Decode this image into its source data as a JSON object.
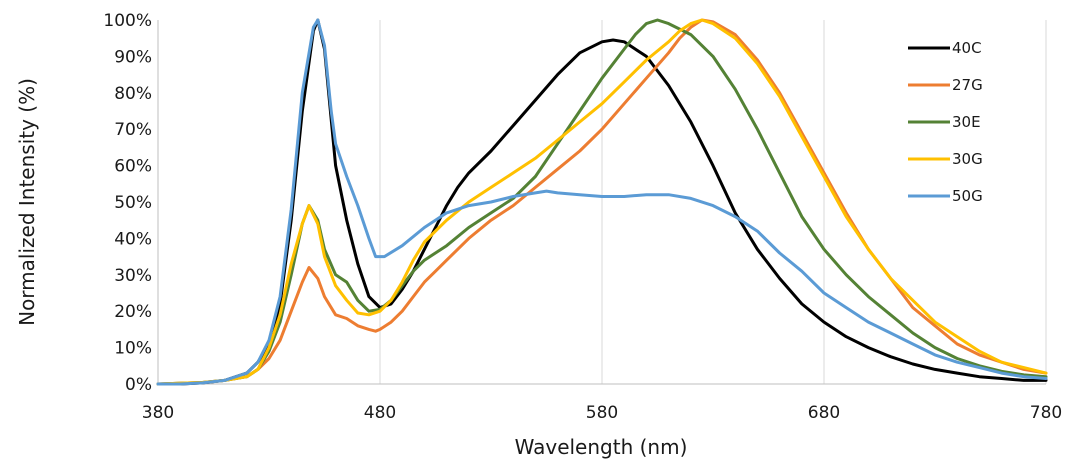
{
  "chart_data": {
    "type": "line",
    "title": "",
    "xlabel": "Wavelength (nm)",
    "ylabel": "Normalized Intensity (%)",
    "xlim": [
      380,
      780
    ],
    "ylim": [
      0,
      100
    ],
    "x_ticks": [
      380,
      480,
      580,
      680,
      780
    ],
    "x_tick_labels": [
      "380",
      "480",
      "580",
      "680",
      "780"
    ],
    "y_ticks": [
      0,
      10,
      20,
      30,
      40,
      50,
      60,
      70,
      80,
      90,
      100
    ],
    "y_tick_labels": [
      "0%",
      "10%",
      "20%",
      "30%",
      "40%",
      "50%",
      "60%",
      "70%",
      "80%",
      "90%",
      "100%"
    ],
    "grid": "vertical",
    "legend_position": "right",
    "series": [
      {
        "name": "40C",
        "color": "#000000",
        "points": [
          [
            380,
            0
          ],
          [
            390,
            0
          ],
          [
            400,
            0.3
          ],
          [
            410,
            1
          ],
          [
            420,
            3
          ],
          [
            425,
            6
          ],
          [
            430,
            11
          ],
          [
            435,
            22
          ],
          [
            440,
            45
          ],
          [
            445,
            75
          ],
          [
            450,
            97
          ],
          [
            452,
            100
          ],
          [
            455,
            92
          ],
          [
            460,
            60
          ],
          [
            465,
            45
          ],
          [
            470,
            33
          ],
          [
            475,
            24
          ],
          [
            480,
            21
          ],
          [
            485,
            22
          ],
          [
            490,
            26
          ],
          [
            495,
            31
          ],
          [
            500,
            37
          ],
          [
            505,
            43
          ],
          [
            510,
            49
          ],
          [
            515,
            54
          ],
          [
            520,
            58
          ],
          [
            530,
            64
          ],
          [
            540,
            71
          ],
          [
            550,
            78
          ],
          [
            560,
            85
          ],
          [
            570,
            91
          ],
          [
            580,
            94
          ],
          [
            585,
            94.5
          ],
          [
            590,
            94
          ],
          [
            600,
            90
          ],
          [
            610,
            82
          ],
          [
            620,
            72
          ],
          [
            630,
            60
          ],
          [
            640,
            47
          ],
          [
            650,
            37
          ],
          [
            660,
            29
          ],
          [
            670,
            22
          ],
          [
            680,
            17
          ],
          [
            690,
            13
          ],
          [
            700,
            10
          ],
          [
            710,
            7.5
          ],
          [
            720,
            5.5
          ],
          [
            730,
            4
          ],
          [
            740,
            3
          ],
          [
            750,
            2
          ],
          [
            760,
            1.5
          ],
          [
            770,
            1
          ],
          [
            780,
            1
          ]
        ]
      },
      {
        "name": "27G",
        "color": "#ED7D31",
        "points": [
          [
            380,
            0
          ],
          [
            390,
            0.2
          ],
          [
            400,
            0.4
          ],
          [
            410,
            1
          ],
          [
            420,
            2
          ],
          [
            425,
            4
          ],
          [
            430,
            7
          ],
          [
            435,
            12
          ],
          [
            440,
            20
          ],
          [
            445,
            28
          ],
          [
            448,
            32
          ],
          [
            452,
            29
          ],
          [
            455,
            24
          ],
          [
            460,
            19
          ],
          [
            465,
            18
          ],
          [
            470,
            16
          ],
          [
            475,
            15
          ],
          [
            478,
            14.5
          ],
          [
            480,
            15
          ],
          [
            485,
            17
          ],
          [
            490,
            20
          ],
          [
            495,
            24
          ],
          [
            500,
            28
          ],
          [
            505,
            31
          ],
          [
            510,
            34
          ],
          [
            520,
            40
          ],
          [
            530,
            45
          ],
          [
            540,
            49
          ],
          [
            550,
            54
          ],
          [
            560,
            59
          ],
          [
            570,
            64
          ],
          [
            580,
            70
          ],
          [
            590,
            77
          ],
          [
            600,
            84
          ],
          [
            610,
            91
          ],
          [
            615,
            95
          ],
          [
            620,
            98
          ],
          [
            625,
            100
          ],
          [
            630,
            99.5
          ],
          [
            640,
            96
          ],
          [
            650,
            89
          ],
          [
            660,
            80
          ],
          [
            670,
            69
          ],
          [
            680,
            58
          ],
          [
            690,
            47
          ],
          [
            700,
            37
          ],
          [
            710,
            29
          ],
          [
            720,
            21
          ],
          [
            730,
            16
          ],
          [
            740,
            11
          ],
          [
            750,
            8
          ],
          [
            760,
            6
          ],
          [
            770,
            4
          ],
          [
            780,
            3
          ]
        ]
      },
      {
        "name": "30E",
        "color": "#548235",
        "points": [
          [
            380,
            0
          ],
          [
            390,
            0.2
          ],
          [
            400,
            0.4
          ],
          [
            410,
            1
          ],
          [
            420,
            2
          ],
          [
            425,
            4
          ],
          [
            430,
            9
          ],
          [
            435,
            17
          ],
          [
            440,
            30
          ],
          [
            445,
            44
          ],
          [
            448,
            49
          ],
          [
            452,
            45
          ],
          [
            455,
            37
          ],
          [
            460,
            30
          ],
          [
            465,
            28
          ],
          [
            470,
            23
          ],
          [
            475,
            20
          ],
          [
            480,
            20.5
          ],
          [
            485,
            23
          ],
          [
            490,
            27
          ],
          [
            495,
            31
          ],
          [
            500,
            34
          ],
          [
            510,
            38
          ],
          [
            520,
            43
          ],
          [
            530,
            47
          ],
          [
            540,
            51
          ],
          [
            550,
            57
          ],
          [
            560,
            66
          ],
          [
            570,
            75
          ],
          [
            580,
            84
          ],
          [
            590,
            92
          ],
          [
            595,
            96
          ],
          [
            600,
            99
          ],
          [
            605,
            100
          ],
          [
            610,
            99
          ],
          [
            620,
            96
          ],
          [
            630,
            90
          ],
          [
            640,
            81
          ],
          [
            650,
            70
          ],
          [
            660,
            58
          ],
          [
            670,
            46
          ],
          [
            680,
            37
          ],
          [
            690,
            30
          ],
          [
            700,
            24
          ],
          [
            710,
            19
          ],
          [
            720,
            14
          ],
          [
            730,
            10
          ],
          [
            740,
            7
          ],
          [
            750,
            5
          ],
          [
            760,
            3.5
          ],
          [
            770,
            2.5
          ],
          [
            780,
            2
          ]
        ]
      },
      {
        "name": "30G",
        "color": "#FFC000",
        "points": [
          [
            380,
            0
          ],
          [
            390,
            0.2
          ],
          [
            400,
            0.4
          ],
          [
            410,
            1
          ],
          [
            420,
            2
          ],
          [
            425,
            4
          ],
          [
            430,
            10
          ],
          [
            435,
            19
          ],
          [
            440,
            33
          ],
          [
            445,
            44
          ],
          [
            448,
            49
          ],
          [
            452,
            44
          ],
          [
            455,
            35
          ],
          [
            460,
            27
          ],
          [
            465,
            23
          ],
          [
            470,
            19.5
          ],
          [
            475,
            19
          ],
          [
            480,
            20
          ],
          [
            485,
            23
          ],
          [
            490,
            28
          ],
          [
            495,
            34
          ],
          [
            500,
            39
          ],
          [
            510,
            45
          ],
          [
            520,
            50
          ],
          [
            530,
            54
          ],
          [
            540,
            58
          ],
          [
            550,
            62
          ],
          [
            560,
            67
          ],
          [
            570,
            72
          ],
          [
            580,
            77
          ],
          [
            590,
            83
          ],
          [
            600,
            89
          ],
          [
            610,
            94
          ],
          [
            615,
            97
          ],
          [
            620,
            99
          ],
          [
            625,
            100
          ],
          [
            630,
            99
          ],
          [
            640,
            95
          ],
          [
            650,
            88
          ],
          [
            660,
            79
          ],
          [
            670,
            68
          ],
          [
            680,
            57
          ],
          [
            690,
            46
          ],
          [
            700,
            37
          ],
          [
            710,
            29
          ],
          [
            720,
            23
          ],
          [
            730,
            17
          ],
          [
            740,
            13
          ],
          [
            750,
            9
          ],
          [
            760,
            6
          ],
          [
            770,
            4.5
          ],
          [
            780,
            3
          ]
        ]
      },
      {
        "name": "50G",
        "color": "#5B9BD5",
        "points": [
          [
            380,
            0
          ],
          [
            390,
            0
          ],
          [
            400,
            0.3
          ],
          [
            410,
            1
          ],
          [
            420,
            3
          ],
          [
            425,
            6
          ],
          [
            430,
            12
          ],
          [
            435,
            24
          ],
          [
            440,
            48
          ],
          [
            445,
            80
          ],
          [
            450,
            98
          ],
          [
            452,
            100
          ],
          [
            455,
            93
          ],
          [
            458,
            75
          ],
          [
            460,
            66
          ],
          [
            465,
            57
          ],
          [
            470,
            49
          ],
          [
            475,
            40
          ],
          [
            478,
            35
          ],
          [
            482,
            35
          ],
          [
            490,
            38
          ],
          [
            500,
            43
          ],
          [
            510,
            47
          ],
          [
            520,
            49
          ],
          [
            530,
            50
          ],
          [
            540,
            51.5
          ],
          [
            550,
            52.5
          ],
          [
            555,
            53
          ],
          [
            560,
            52.5
          ],
          [
            570,
            52
          ],
          [
            580,
            51.5
          ],
          [
            590,
            51.5
          ],
          [
            600,
            52
          ],
          [
            610,
            52
          ],
          [
            620,
            51
          ],
          [
            630,
            49
          ],
          [
            640,
            46
          ],
          [
            650,
            42
          ],
          [
            660,
            36
          ],
          [
            670,
            31
          ],
          [
            680,
            25
          ],
          [
            690,
            21
          ],
          [
            700,
            17
          ],
          [
            710,
            14
          ],
          [
            720,
            11
          ],
          [
            730,
            8
          ],
          [
            740,
            6
          ],
          [
            750,
            4.5
          ],
          [
            760,
            3
          ],
          [
            770,
            2
          ],
          [
            780,
            1.5
          ]
        ]
      }
    ]
  }
}
